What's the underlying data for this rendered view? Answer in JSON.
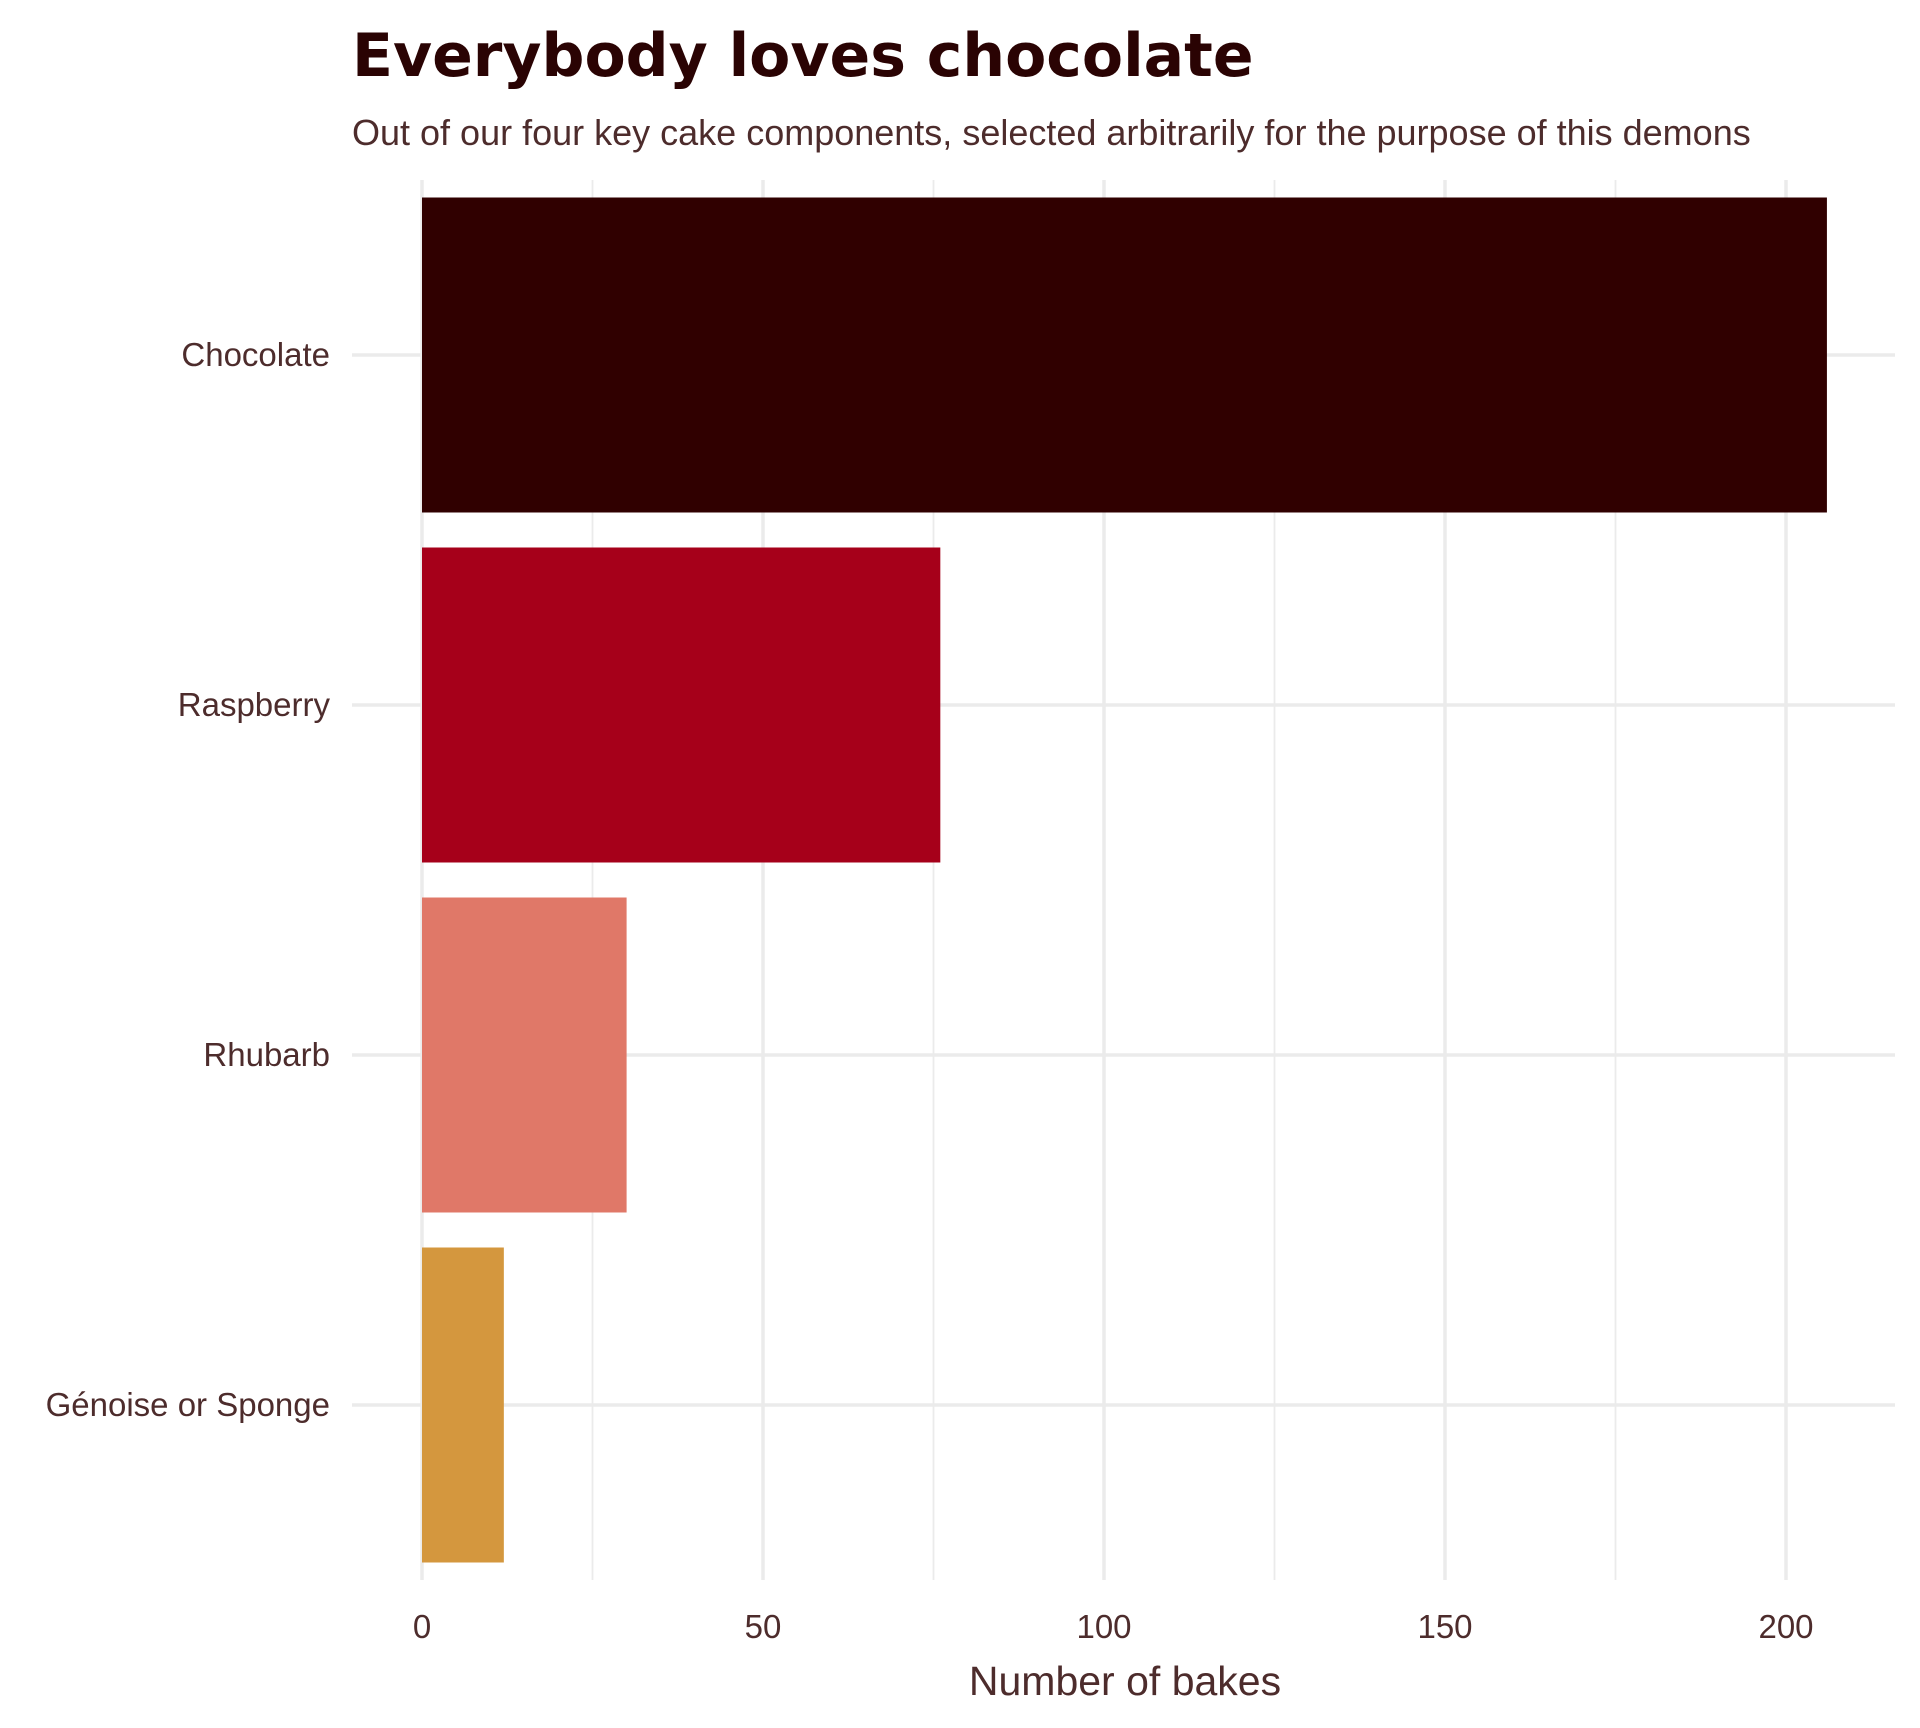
{
  "chart_data": {
    "type": "bar",
    "orientation": "horizontal",
    "title": "Everybody loves chocolate",
    "subtitle": "Out of our four key cake components, selected arbitrarily for the purpose of this demons",
    "xlabel": "Number of bakes",
    "ylabel": "",
    "xlim": [
      0,
      212
    ],
    "x_ticks": [
      0,
      50,
      100,
      150,
      200
    ],
    "x_tick_labels": [
      "0",
      "50",
      "100",
      "150",
      "200"
    ],
    "grid": true,
    "legend": "none",
    "categories": [
      "Chocolate",
      "Raspberry",
      "Rhubarb",
      "Génoise or Sponge"
    ],
    "values": [
      206,
      76,
      30,
      12
    ],
    "colors": [
      "#300000",
      "#a6001a",
      "#e07868",
      "#d4973e"
    ]
  }
}
